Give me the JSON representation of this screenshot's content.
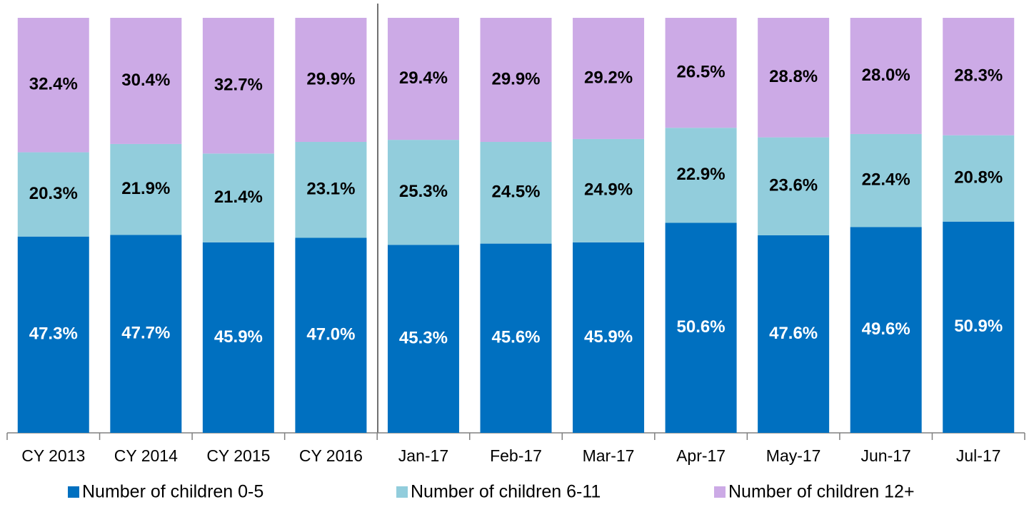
{
  "chart_data": {
    "type": "stacked_bar",
    "categories": [
      "CY 2013",
      "CY 2014",
      "CY 2015",
      "CY 2016",
      "Jan-17",
      "Feb-17",
      "Mar-17",
      "Apr-17",
      "May-17",
      "Jun-17",
      "Jul-17"
    ],
    "series": [
      {
        "name": "Number of children 0-5",
        "color": "#0070c0",
        "label_color": "#ffffff",
        "values": [
          47.3,
          47.7,
          45.9,
          47.0,
          45.3,
          45.6,
          45.9,
          50.6,
          47.6,
          49.6,
          50.9
        ],
        "value_labels": [
          "47.3%",
          "47.7%",
          "45.9%",
          "47.0%",
          "45.3%",
          "45.6%",
          "45.9%",
          "50.6%",
          "47.6%",
          "49.6%",
          "50.9%"
        ]
      },
      {
        "name": "Number of children 6-11",
        "color": "#92cddc",
        "label_color": "#000000",
        "values": [
          20.3,
          21.9,
          21.4,
          23.1,
          25.3,
          24.5,
          24.9,
          22.9,
          23.6,
          22.4,
          20.8
        ],
        "value_labels": [
          "20.3%",
          "21.9%",
          "21.4%",
          "23.1%",
          "25.3%",
          "24.5%",
          "24.9%",
          "22.9%",
          "23.6%",
          "22.4%",
          "20.8%"
        ]
      },
      {
        "name": "Number of children 12+",
        "color": "#ccaae6",
        "label_color": "#000000",
        "values": [
          32.4,
          30.4,
          32.7,
          29.9,
          29.4,
          29.9,
          29.2,
          26.5,
          28.8,
          28.0,
          28.3
        ],
        "value_labels": [
          "32.4%",
          "30.4%",
          "32.7%",
          "29.9%",
          "29.4%",
          "29.9%",
          "29.2%",
          "26.5%",
          "28.8%",
          "28.0%",
          "28.3%"
        ]
      }
    ],
    "ylim": [
      0,
      100
    ],
    "legend": "bottom"
  }
}
